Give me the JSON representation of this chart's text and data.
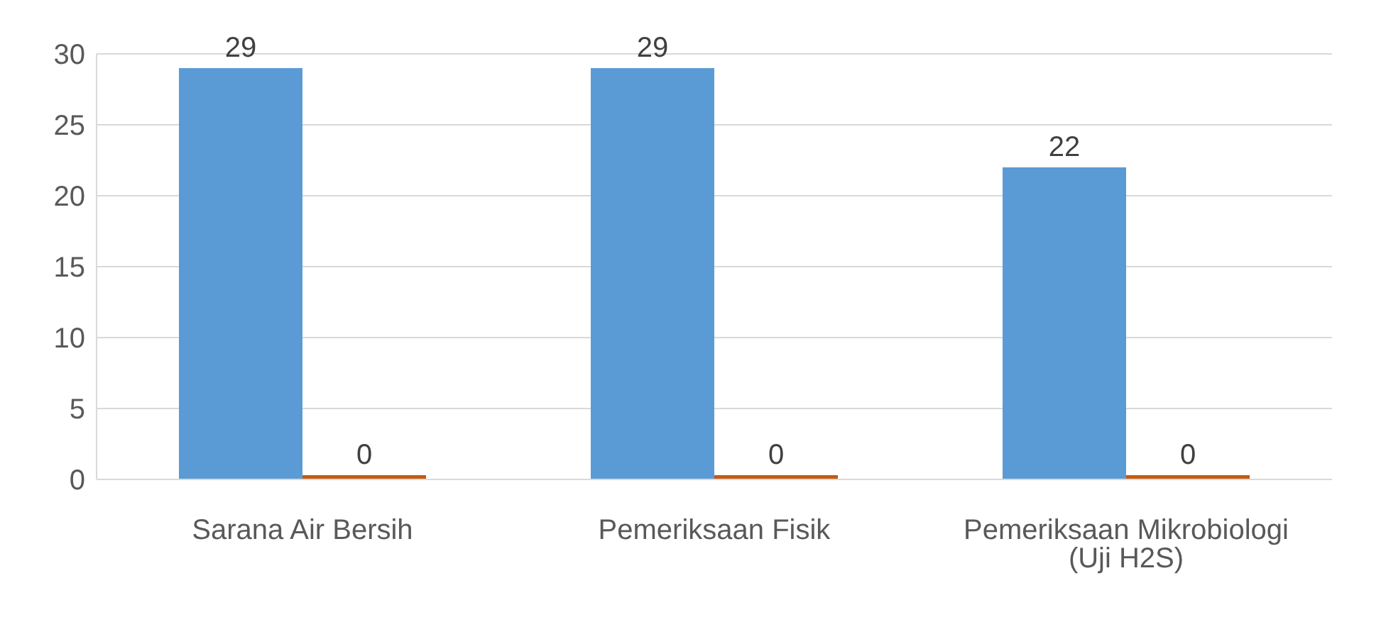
{
  "chart_data": {
    "type": "bar",
    "categories": [
      "Sarana Air Bersih",
      "Pemeriksaan Fisik",
      "Pemeriksaan Mikrobiologi (Uji H2S)"
    ],
    "series": [
      {
        "color": "#5b9bd5",
        "values": [
          29,
          29,
          22
        ]
      },
      {
        "color": "#c55a11",
        "values": [
          0,
          0,
          0
        ]
      }
    ],
    "ylim": [
      0,
      30
    ],
    "yticks": [
      0,
      5,
      10,
      15,
      20,
      25,
      30
    ],
    "grid": "y",
    "data_labels": true,
    "legend": false
  }
}
